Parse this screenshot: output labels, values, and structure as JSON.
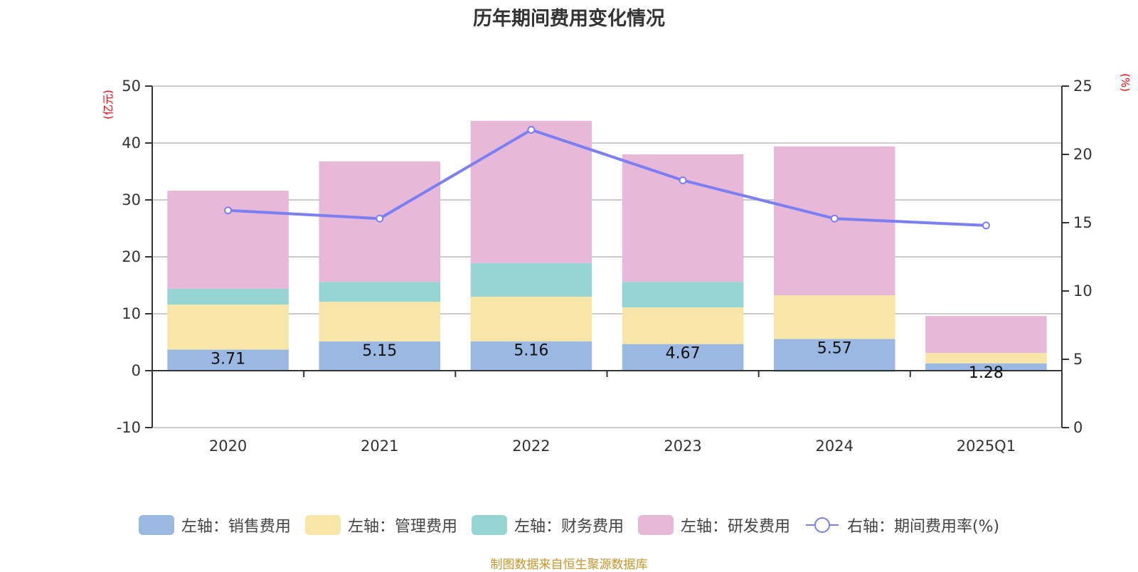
{
  "title": "历年期间费用变化情况",
  "footer": "制图数据来自恒生聚源数据库",
  "colors": {
    "sales": "#9bb8e2",
    "admin": "#f8e6a8",
    "finance": "#97d4d4",
    "rnd": "#e8b8d8",
    "rate": "#7b7ff2",
    "axis": "#333333",
    "grid": "#cccccc",
    "unit": "#ff0000"
  },
  "legend": [
    {
      "key": "sales",
      "label": "左轴：销售费用",
      "type": "box"
    },
    {
      "key": "admin",
      "label": "左轴：管理费用",
      "type": "box"
    },
    {
      "key": "finance",
      "label": "左轴：财务费用",
      "type": "box"
    },
    {
      "key": "rnd",
      "label": "左轴：研发费用",
      "type": "box"
    },
    {
      "key": "rate",
      "label": "右轴：期间费用率(%)",
      "type": "line"
    }
  ],
  "chart_data": {
    "type": "bar",
    "stacked": true,
    "title": "历年期间费用变化情况",
    "categories": [
      "2020",
      "2021",
      "2022",
      "2023",
      "2024",
      "2025Q1"
    ],
    "series": [
      {
        "key": "sales",
        "name": "左轴：销售费用",
        "axis": "left",
        "type": "bar",
        "values": [
          3.71,
          5.15,
          5.16,
          4.67,
          5.57,
          1.28
        ],
        "labels": [
          "3.71",
          "5.15",
          "5.16",
          "4.67",
          "5.57",
          "1.28"
        ]
      },
      {
        "key": "admin",
        "name": "左轴：管理费用",
        "axis": "left",
        "type": "bar",
        "values": [
          7.9,
          6.95,
          7.84,
          6.43,
          7.68,
          1.82
        ]
      },
      {
        "key": "finance",
        "name": "左轴：财务费用",
        "axis": "left",
        "type": "bar",
        "values": [
          2.8,
          3.5,
          5.9,
          4.5,
          -0.2,
          -0.05
        ]
      },
      {
        "key": "rnd",
        "name": "左轴：研发费用",
        "axis": "left",
        "type": "bar",
        "values": [
          17.2,
          21.15,
          25.0,
          22.4,
          26.15,
          6.5
        ]
      },
      {
        "key": "rate",
        "name": "右轴：期间费用率(%)",
        "axis": "right",
        "type": "line",
        "values": [
          15.9,
          15.3,
          21.8,
          18.1,
          15.3,
          14.8
        ]
      }
    ],
    "left_axis": {
      "label": "(亿元)",
      "range": [
        -10,
        50
      ],
      "ticks": [
        -10,
        0,
        10,
        20,
        30,
        40,
        50
      ]
    },
    "right_axis": {
      "label": "(%)",
      "range": [
        0,
        25
      ],
      "ticks": [
        0,
        5,
        10,
        15,
        20,
        25
      ]
    },
    "grid": true,
    "legend_position": "bottom"
  }
}
